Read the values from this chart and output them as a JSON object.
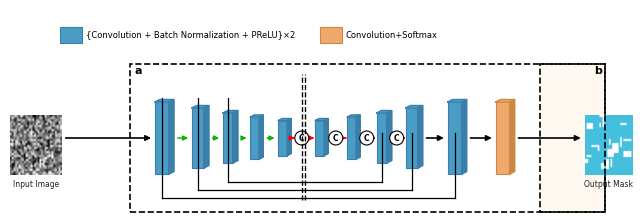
{
  "title": "",
  "fig_width": 6.4,
  "fig_height": 2.2,
  "dpi": 100,
  "bg_color": "#ffffff",
  "blue_color": "#4a9cc7",
  "blue_dark": "#3a7fa8",
  "orange_color": "#f0a86c",
  "orange_dark": "#cc8844",
  "green_arrow": "#00aa00",
  "red_arrow": "#cc0000",
  "black_arrow": "#000000",
  "gray_text": "#222222",
  "legend_blue_label": "{Convolution + Batch Normalization + PReLU}×2",
  "legend_orange_label": "Convolution+Softmax",
  "label_a": "a",
  "label_b": "b",
  "label_input": "Input Image",
  "label_output": "Output Mask"
}
